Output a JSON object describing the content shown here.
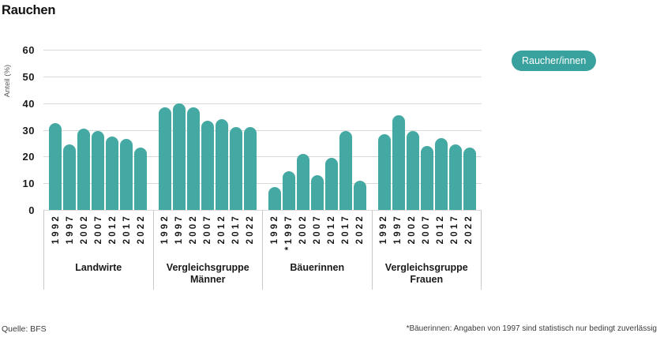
{
  "title": "Rauchen",
  "legend": {
    "label": "Raucher/innen"
  },
  "footer": {
    "source": "Quelle: BFS",
    "footnote": "*Bäuerinnen: Angaben von 1997 sind statistisch nur bedingt zuverlässig"
  },
  "colors": {
    "bar": "#45a9a3",
    "legend_bg": "#3aa29e",
    "grid": "#d9d9d9",
    "separator": "#c9c9c9"
  },
  "chart_data": {
    "type": "bar",
    "title": "Rauchen",
    "xlabel": "",
    "ylabel": "Anteil (%)",
    "ylim": [
      0,
      60
    ],
    "yticks": [
      0,
      10,
      20,
      30,
      40,
      50,
      60
    ],
    "grid": true,
    "legend_entries": [
      "Raucher/innen"
    ],
    "legend_position": "right",
    "groups": [
      {
        "label": "Landwirte",
        "years": [
          "1992",
          "1997",
          "2002",
          "2007",
          "2012",
          "2017",
          "2022"
        ],
        "values": [
          32.5,
          24.5,
          30.5,
          29.5,
          27.5,
          26.5,
          23.5
        ]
      },
      {
        "label": "Vergleichsgruppe Männer",
        "years": [
          "1992",
          "1997",
          "2002",
          "2007",
          "2012",
          "2017",
          "2022"
        ],
        "values": [
          38.5,
          40,
          38.5,
          33.5,
          34,
          31,
          31
        ]
      },
      {
        "label": "Bäuerinnen",
        "years": [
          "1992",
          "*1997",
          "2002",
          "2007",
          "2012",
          "2017",
          "2022"
        ],
        "values": [
          8.5,
          14.5,
          21,
          13,
          19.5,
          29.5,
          11
        ]
      },
      {
        "label": "Vergleichsgruppe Frauen",
        "years": [
          "1992",
          "1997",
          "2002",
          "2007",
          "2012",
          "2017",
          "2022"
        ],
        "values": [
          28.5,
          35.5,
          29.5,
          24,
          27,
          24.5,
          23.5
        ]
      }
    ]
  }
}
